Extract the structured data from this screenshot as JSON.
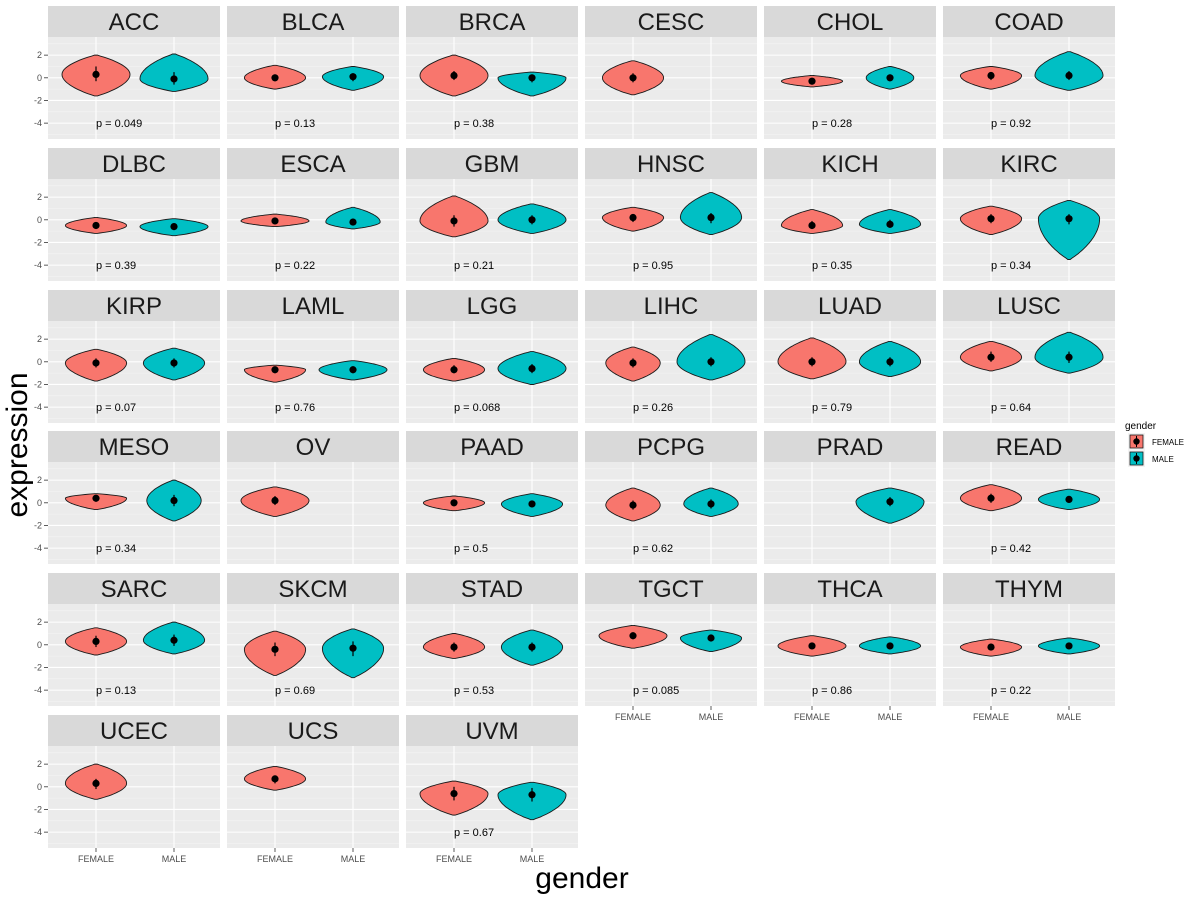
{
  "chart_data": {
    "type": "violin",
    "xlabel": "gender",
    "ylabel": "expression",
    "categories": [
      "FEMALE",
      "MALE"
    ],
    "yticks": [
      2,
      0,
      -2,
      -4
    ],
    "ylim": [
      -5.4,
      3.6
    ],
    "legend": {
      "title": "gender",
      "placement": "right",
      "entries": [
        {
          "label": "FEMALE",
          "color": "#F8766D"
        },
        {
          "label": "MALE",
          "color": "#00BFC4"
        }
      ]
    },
    "colors": {
      "FEMALE": "#F8766D",
      "MALE": "#00BFC4",
      "panel_bg": "#EBEBEB",
      "strip_bg": "#D9D9D9"
    },
    "panels": [
      {
        "name": "ACC",
        "p": "p = 0.049",
        "female": {
          "min": -1.6,
          "max": 2.0,
          "median": 0.3,
          "q1": -0.3,
          "q3": 1.0,
          "w": 1.0
        },
        "male": {
          "min": -1.2,
          "max": 2.1,
          "median": -0.1,
          "q1": -0.6,
          "q3": 0.5,
          "w": 1.0
        }
      },
      {
        "name": "BLCA",
        "p": "p = 0.13",
        "female": {
          "min": -1.0,
          "max": 1.1,
          "median": 0.0,
          "q1": -0.3,
          "q3": 0.3,
          "w": 0.9
        },
        "male": {
          "min": -1.1,
          "max": 1.0,
          "median": 0.1,
          "q1": -0.3,
          "q3": 0.4,
          "w": 0.9
        }
      },
      {
        "name": "BRCA",
        "p": "p = 0.38",
        "female": {
          "min": -1.6,
          "max": 2.0,
          "median": 0.2,
          "q1": -0.2,
          "q3": 0.6,
          "w": 1.0
        },
        "male": {
          "min": -1.6,
          "max": 0.5,
          "median": 0.0,
          "q1": -0.4,
          "q3": 0.3,
          "w": 1.0
        }
      },
      {
        "name": "CESC",
        "p": "",
        "female": {
          "min": -1.5,
          "max": 1.5,
          "median": 0.0,
          "q1": -0.4,
          "q3": 0.4,
          "w": 0.9
        },
        "male": null
      },
      {
        "name": "CHOL",
        "p": "p = 0.28",
        "female": {
          "min": -0.8,
          "max": 0.2,
          "median": -0.3,
          "q1": -0.6,
          "q3": -0.1,
          "w": 0.9
        },
        "male": {
          "min": -1.0,
          "max": 1.0,
          "median": 0.0,
          "q1": -0.3,
          "q3": 0.3,
          "w": 0.7
        }
      },
      {
        "name": "COAD",
        "p": "p = 0.92",
        "female": {
          "min": -1.0,
          "max": 1.0,
          "median": 0.2,
          "q1": -0.2,
          "q3": 0.5,
          "w": 0.9
        },
        "male": {
          "min": -1.1,
          "max": 2.3,
          "median": 0.2,
          "q1": -0.2,
          "q3": 0.6,
          "w": 1.0
        }
      },
      {
        "name": "DLBC",
        "p": "p = 0.39",
        "female": {
          "min": -1.2,
          "max": 0.2,
          "median": -0.5,
          "q1": -0.8,
          "q3": -0.2,
          "w": 0.9
        },
        "male": {
          "min": -1.4,
          "max": 0.1,
          "median": -0.6,
          "q1": -0.9,
          "q3": -0.3,
          "w": 1.0
        }
      },
      {
        "name": "ESCA",
        "p": "p = 0.22",
        "female": {
          "min": -0.6,
          "max": 0.5,
          "median": -0.1,
          "q1": -0.3,
          "q3": 0.2,
          "w": 1.0
        },
        "male": {
          "min": -0.8,
          "max": 1.1,
          "median": -0.2,
          "q1": -0.5,
          "q3": 0.1,
          "w": 0.8
        }
      },
      {
        "name": "GBM",
        "p": "p = 0.21",
        "female": {
          "min": -1.5,
          "max": 2.1,
          "median": -0.1,
          "q1": -0.6,
          "q3": 0.4,
          "w": 1.0
        },
        "male": {
          "min": -1.2,
          "max": 1.4,
          "median": 0.0,
          "q1": -0.4,
          "q3": 0.4,
          "w": 1.0
        }
      },
      {
        "name": "HNSC",
        "p": "p = 0.95",
        "female": {
          "min": -1.0,
          "max": 1.1,
          "median": 0.2,
          "q1": -0.2,
          "q3": 0.5,
          "w": 0.9
        },
        "male": {
          "min": -1.3,
          "max": 2.4,
          "median": 0.2,
          "q1": -0.3,
          "q3": 0.6,
          "w": 0.9
        }
      },
      {
        "name": "KICH",
        "p": "p = 0.35",
        "female": {
          "min": -1.2,
          "max": 0.9,
          "median": -0.5,
          "q1": -0.8,
          "q3": -0.1,
          "w": 0.9
        },
        "male": {
          "min": -1.2,
          "max": 0.9,
          "median": -0.4,
          "q1": -0.7,
          "q3": 0.0,
          "w": 0.9
        }
      },
      {
        "name": "KIRC",
        "p": "p = 0.34",
        "female": {
          "min": -1.3,
          "max": 1.2,
          "median": 0.1,
          "q1": -0.3,
          "q3": 0.5,
          "w": 0.9
        },
        "male": {
          "min": -3.5,
          "max": 1.7,
          "median": 0.1,
          "q1": -0.4,
          "q3": 0.5,
          "w": 0.9
        }
      },
      {
        "name": "KIRP",
        "p": "p = 0.07",
        "female": {
          "min": -1.7,
          "max": 1.1,
          "median": -0.1,
          "q1": -0.5,
          "q3": 0.3,
          "w": 0.9
        },
        "male": {
          "min": -1.6,
          "max": 1.2,
          "median": -0.1,
          "q1": -0.5,
          "q3": 0.3,
          "w": 0.9
        }
      },
      {
        "name": "LAML",
        "p": "p = 0.76",
        "female": {
          "min": -1.8,
          "max": -0.3,
          "median": -0.7,
          "q1": -1.0,
          "q3": -0.5,
          "w": 0.9
        },
        "male": {
          "min": -1.6,
          "max": 0.1,
          "median": -0.7,
          "q1": -1.0,
          "q3": -0.4,
          "w": 1.0
        }
      },
      {
        "name": "LGG",
        "p": "p = 0.068",
        "female": {
          "min": -1.7,
          "max": 0.3,
          "median": -0.7,
          "q1": -1.0,
          "q3": -0.3,
          "w": 0.9
        },
        "male": {
          "min": -2.0,
          "max": 0.9,
          "median": -0.6,
          "q1": -1.0,
          "q3": -0.2,
          "w": 1.0
        }
      },
      {
        "name": "LIHC",
        "p": "p = 0.26",
        "female": {
          "min": -1.7,
          "max": 1.3,
          "median": -0.1,
          "q1": -0.5,
          "q3": 0.3,
          "w": 0.8
        },
        "male": {
          "min": -1.6,
          "max": 2.4,
          "median": 0.0,
          "q1": -0.4,
          "q3": 0.4,
          "w": 1.0
        }
      },
      {
        "name": "LUAD",
        "p": "p = 0.79",
        "female": {
          "min": -1.5,
          "max": 2.1,
          "median": 0.0,
          "q1": -0.4,
          "q3": 0.4,
          "w": 1.0
        },
        "male": {
          "min": -1.3,
          "max": 1.8,
          "median": 0.0,
          "q1": -0.4,
          "q3": 0.4,
          "w": 0.9
        }
      },
      {
        "name": "LUSC",
        "p": "p = 0.64",
        "female": {
          "min": -0.8,
          "max": 1.8,
          "median": 0.4,
          "q1": 0.0,
          "q3": 0.9,
          "w": 0.9
        },
        "male": {
          "min": -1.0,
          "max": 2.6,
          "median": 0.4,
          "q1": -0.1,
          "q3": 0.9,
          "w": 1.0
        }
      },
      {
        "name": "MESO",
        "p": "p = 0.34",
        "female": {
          "min": -0.6,
          "max": 0.8,
          "median": 0.4,
          "q1": 0.1,
          "q3": 0.6,
          "w": 0.9
        },
        "male": {
          "min": -1.6,
          "max": 2.0,
          "median": 0.2,
          "q1": -0.3,
          "q3": 0.7,
          "w": 0.8
        }
      },
      {
        "name": "OV",
        "p": "",
        "female": {
          "min": -1.2,
          "max": 1.4,
          "median": 0.2,
          "q1": -0.2,
          "q3": 0.6,
          "w": 1.0
        },
        "male": null
      },
      {
        "name": "PAAD",
        "p": "p = 0.5",
        "female": {
          "min": -0.7,
          "max": 0.6,
          "median": 0.0,
          "q1": -0.3,
          "q3": 0.3,
          "w": 0.9
        },
        "male": {
          "min": -1.2,
          "max": 0.8,
          "median": -0.1,
          "q1": -0.4,
          "q3": 0.2,
          "w": 0.9
        }
      },
      {
        "name": "PCPG",
        "p": "p = 0.62",
        "female": {
          "min": -1.6,
          "max": 1.3,
          "median": -0.2,
          "q1": -0.6,
          "q3": 0.2,
          "w": 0.8
        },
        "male": {
          "min": -1.2,
          "max": 1.3,
          "median": -0.1,
          "q1": -0.5,
          "q3": 0.3,
          "w": 0.8
        }
      },
      {
        "name": "PRAD",
        "p": "",
        "female": null,
        "male": {
          "min": -1.8,
          "max": 1.3,
          "median": 0.1,
          "q1": -0.3,
          "q3": 0.5,
          "w": 1.0
        }
      },
      {
        "name": "READ",
        "p": "p = 0.42",
        "female": {
          "min": -0.7,
          "max": 1.6,
          "median": 0.4,
          "q1": 0.0,
          "q3": 0.8,
          "w": 0.9
        },
        "male": {
          "min": -0.6,
          "max": 1.2,
          "median": 0.3,
          "q1": 0.0,
          "q3": 0.6,
          "w": 0.9
        }
      },
      {
        "name": "SARC",
        "p": "p = 0.13",
        "female": {
          "min": -0.9,
          "max": 1.5,
          "median": 0.3,
          "q1": -0.2,
          "q3": 0.8,
          "w": 0.9
        },
        "male": {
          "min": -0.8,
          "max": 2.0,
          "median": 0.4,
          "q1": -0.1,
          "q3": 0.9,
          "w": 0.9
        }
      },
      {
        "name": "SKCM",
        "p": "p = 0.69",
        "female": {
          "min": -2.7,
          "max": 1.2,
          "median": -0.4,
          "q1": -1.0,
          "q3": 0.2,
          "w": 0.9
        },
        "male": {
          "min": -2.9,
          "max": 1.4,
          "median": -0.3,
          "q1": -1.0,
          "q3": 0.3,
          "w": 0.9
        }
      },
      {
        "name": "STAD",
        "p": "p = 0.53",
        "female": {
          "min": -1.2,
          "max": 1.0,
          "median": -0.2,
          "q1": -0.6,
          "q3": 0.2,
          "w": 0.9
        },
        "male": {
          "min": -1.8,
          "max": 1.3,
          "median": -0.2,
          "q1": -0.6,
          "q3": 0.2,
          "w": 0.9
        }
      },
      {
        "name": "TGCT",
        "p": "p = 0.085",
        "female": {
          "min": -0.3,
          "max": 1.7,
          "median": 0.8,
          "q1": 0.5,
          "q3": 1.1,
          "w": 1.0
        },
        "male": {
          "min": -0.6,
          "max": 1.3,
          "median": 0.6,
          "q1": 0.3,
          "q3": 0.9,
          "w": 0.9
        }
      },
      {
        "name": "THCA",
        "p": "p = 0.86",
        "female": {
          "min": -1.0,
          "max": 0.8,
          "median": -0.1,
          "q1": -0.3,
          "q3": 0.2,
          "w": 1.0
        },
        "male": {
          "min": -0.8,
          "max": 0.7,
          "median": -0.1,
          "q1": -0.3,
          "q3": 0.2,
          "w": 0.9
        }
      },
      {
        "name": "THYM",
        "p": "p = 0.22",
        "female": {
          "min": -1.0,
          "max": 0.5,
          "median": -0.2,
          "q1": -0.5,
          "q3": 0.1,
          "w": 0.9
        },
        "male": {
          "min": -0.8,
          "max": 0.6,
          "median": -0.1,
          "q1": -0.3,
          "q3": 0.2,
          "w": 0.9
        }
      },
      {
        "name": "UCEC",
        "p": "",
        "female": {
          "min": -1.1,
          "max": 2.0,
          "median": 0.3,
          "q1": -0.2,
          "q3": 0.7,
          "w": 0.9
        },
        "male": null
      },
      {
        "name": "UCS",
        "p": "",
        "female": {
          "min": -0.3,
          "max": 1.8,
          "median": 0.7,
          "q1": 0.3,
          "q3": 1.0,
          "w": 0.9
        },
        "male": null
      },
      {
        "name": "UVM",
        "p": "p = 0.67",
        "female": {
          "min": -2.5,
          "max": 0.5,
          "median": -0.6,
          "q1": -1.2,
          "q3": 0.0,
          "w": 1.0
        },
        "male": {
          "min": -2.9,
          "max": 0.4,
          "median": -0.7,
          "q1": -1.3,
          "q3": -0.1,
          "w": 1.0
        }
      }
    ]
  }
}
